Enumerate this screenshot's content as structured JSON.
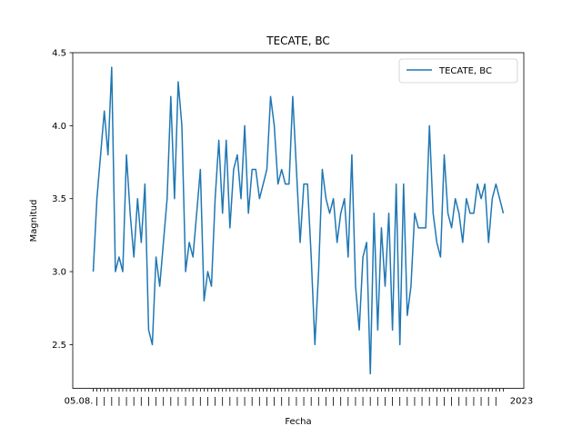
{
  "chart_data": {
    "type": "line",
    "title": "TECATE, BC",
    "xlabel": "Fecha",
    "ylabel": "Magnitud",
    "ylim": [
      2.2,
      4.5
    ],
    "yticks": [
      "2.5",
      "3.0",
      "3.5",
      "4.0",
      "4.5"
    ],
    "x_tick_label_first": "05.08.",
    "x_tick_label_last": "2023",
    "legend": {
      "position": "top-right",
      "entries": [
        "TECATE, BC"
      ]
    },
    "grid": false,
    "series": [
      {
        "name": "TECATE, BC",
        "color": "#1f77b4",
        "values": [
          3.0,
          3.5,
          3.8,
          4.1,
          3.8,
          4.4,
          3.0,
          3.1,
          3.0,
          3.8,
          3.4,
          3.1,
          3.5,
          3.2,
          3.6,
          2.6,
          2.5,
          3.1,
          2.9,
          3.2,
          3.5,
          4.2,
          3.5,
          4.3,
          4.0,
          3.0,
          3.2,
          3.1,
          3.4,
          3.7,
          2.8,
          3.0,
          2.9,
          3.5,
          3.9,
          3.4,
          3.9,
          3.3,
          3.7,
          3.8,
          3.5,
          4.0,
          3.4,
          3.7,
          3.7,
          3.5,
          3.6,
          3.7,
          4.2,
          4.0,
          3.6,
          3.7,
          3.6,
          3.6,
          4.2,
          3.7,
          3.2,
          3.6,
          3.6,
          3.1,
          2.5,
          3.0,
          3.7,
          3.5,
          3.4,
          3.5,
          3.2,
          3.4,
          3.5,
          3.1,
          3.8,
          2.9,
          2.6,
          3.1,
          3.2,
          2.3,
          3.4,
          2.6,
          3.3,
          2.9,
          3.4,
          2.6,
          3.6,
          2.5,
          3.6,
          2.7,
          2.9,
          3.4,
          3.3,
          3.3,
          3.3,
          4.0,
          3.4,
          3.2,
          3.1,
          3.8,
          3.4,
          3.3,
          3.5,
          3.4,
          3.2,
          3.5,
          3.4,
          3.4,
          3.6,
          3.5,
          3.6,
          3.2,
          3.5,
          3.6,
          3.5,
          3.4
        ]
      }
    ]
  }
}
